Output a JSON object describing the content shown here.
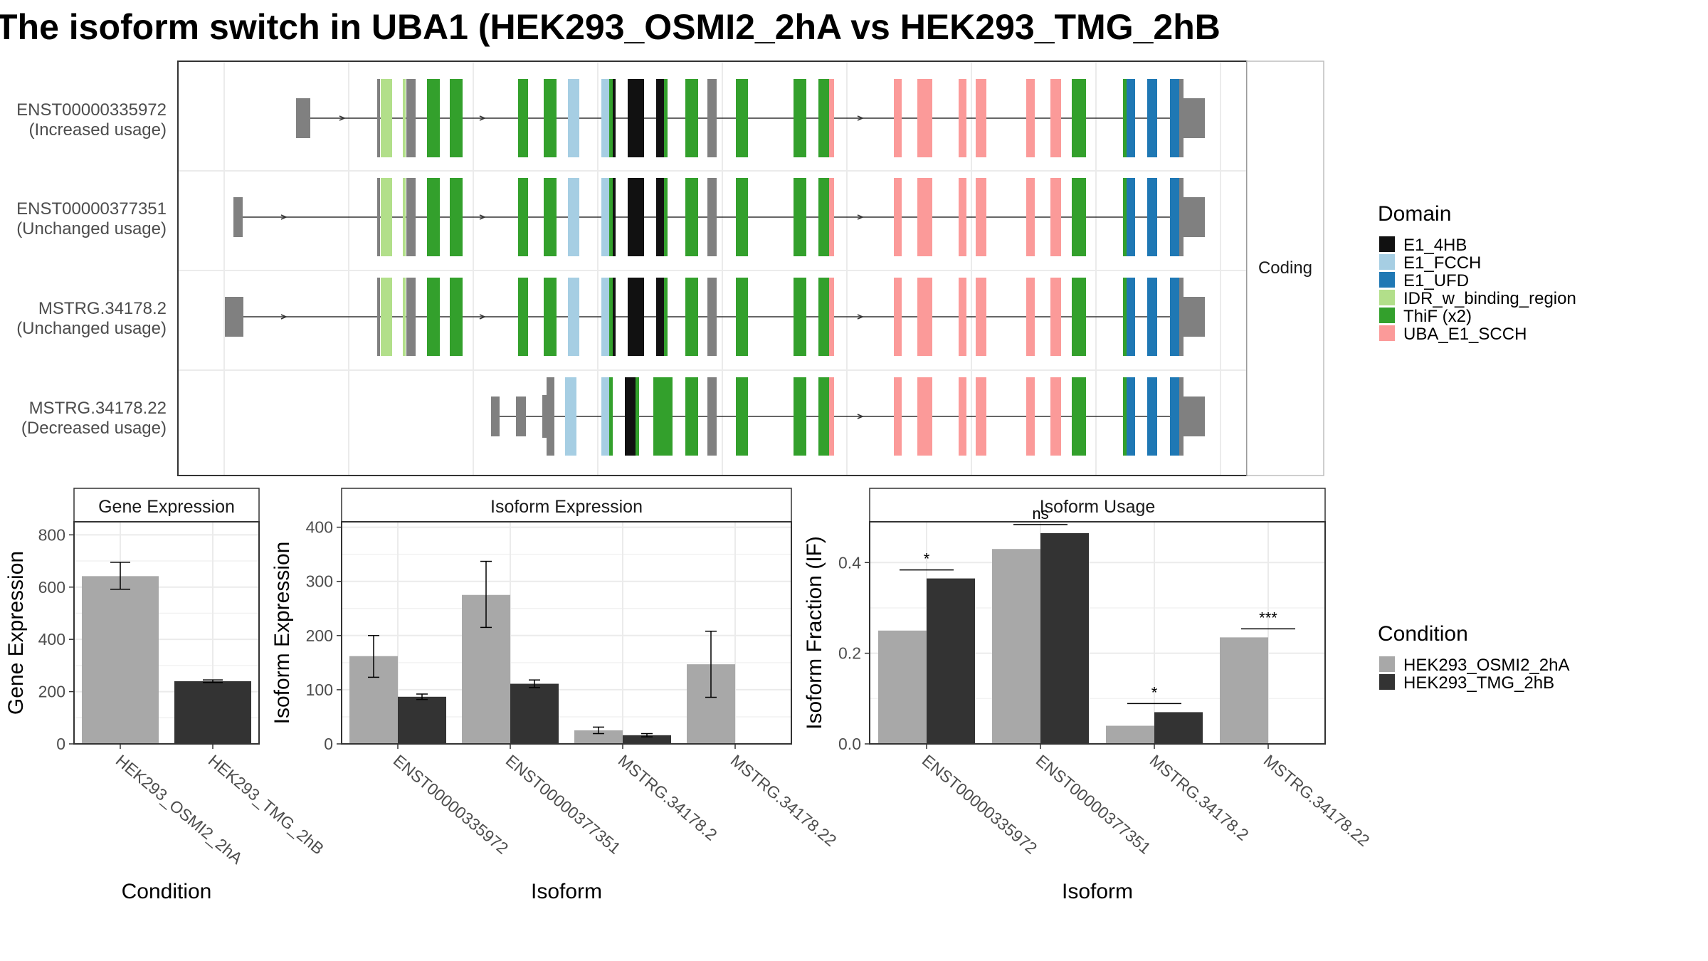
{
  "title": "The isoform switch in UBA1 (HEK293_OSMI2_2hA vs HEK293_TMG_2hB",
  "structure_panel": {
    "strip_label": "Coding",
    "tracks": [
      {
        "id": "ENST00000335972",
        "usage": "(Increased usage)"
      },
      {
        "id": "ENST00000377351",
        "usage": "(Unchanged usage)"
      },
      {
        "id": "MSTRG.34178.2",
        "usage": "(Unchanged usage)"
      },
      {
        "id": "MSTRG.34178.22",
        "usage": "(Decreased usage)"
      }
    ]
  },
  "domain_legend": {
    "title": "Domain",
    "items": [
      {
        "label": "E1_4HB",
        "color": "#111111"
      },
      {
        "label": "E1_FCCH",
        "color": "#a6cee3"
      },
      {
        "label": "E1_UFD",
        "color": "#1f78b4"
      },
      {
        "label": "IDR_w_binding_region",
        "color": "#b2df8a"
      },
      {
        "label": "ThiF (x2)",
        "color": "#33a02c"
      },
      {
        "label": "UBA_E1_SCCH",
        "color": "#fb9a99"
      }
    ]
  },
  "condition_legend": {
    "title": "Condition",
    "items": [
      {
        "label": "HEK293_OSMI2_2hA",
        "color": "#a8a8a8"
      },
      {
        "label": "HEK293_TMG_2hB",
        "color": "#333333"
      }
    ]
  },
  "chart_data": [
    {
      "type": "bar",
      "title": "Gene Expression",
      "xlabel": "Condition",
      "ylabel": "Gene Expression",
      "ylim": [
        0,
        850
      ],
      "yticks": [
        0,
        200,
        400,
        600,
        800
      ],
      "categories": [
        "HEK293_OSMI2_2hA",
        "HEK293_TMG_2hB"
      ],
      "values": [
        642,
        240
      ],
      "errors": [
        [
          592,
          695
        ],
        [
          235,
          245
        ]
      ],
      "colors": [
        "#a8a8a8",
        "#333333"
      ],
      "grid": true
    },
    {
      "type": "bar",
      "title": "Isoform Expression",
      "xlabel": "Isoform",
      "ylabel": "Isoform Expression",
      "ylim": [
        0,
        410
      ],
      "yticks": [
        0,
        100,
        200,
        300,
        400
      ],
      "categories": [
        "ENST00000335972",
        "ENST00000377351",
        "MSTRG.34178.2",
        "MSTRG.34178.22"
      ],
      "series": [
        {
          "name": "HEK293_OSMI2_2hA",
          "values": [
            162,
            275,
            25,
            147
          ],
          "errors": [
            [
              123,
              200
            ],
            [
              215,
              337
            ],
            [
              19,
              31
            ],
            [
              86,
              208
            ]
          ]
        },
        {
          "name": "HEK293_TMG_2hB",
          "values": [
            87,
            111,
            16,
            0
          ],
          "errors": [
            [
              82,
              92
            ],
            [
              104,
              118
            ],
            [
              13,
              19
            ],
            [
              0,
              0
            ]
          ]
        }
      ],
      "grid": true
    },
    {
      "type": "bar",
      "title": "Isoform Usage",
      "xlabel": "Isoform",
      "ylabel": "Isoform Fraction (IF)",
      "ylim": [
        0,
        0.49
      ],
      "yticks": [
        0.0,
        0.2,
        0.4
      ],
      "categories": [
        "ENST00000335972",
        "ENST00000377351",
        "MSTRG.34178.2",
        "MSTRG.34178.22"
      ],
      "series": [
        {
          "name": "HEK293_OSMI2_2hA",
          "values": [
            0.25,
            0.43,
            0.04,
            0.235
          ]
        },
        {
          "name": "HEK293_TMG_2hB",
          "values": [
            0.365,
            0.465,
            0.07,
            0.0
          ]
        }
      ],
      "significance": [
        "*",
        "ns",
        "*",
        "***"
      ],
      "grid": true
    }
  ]
}
